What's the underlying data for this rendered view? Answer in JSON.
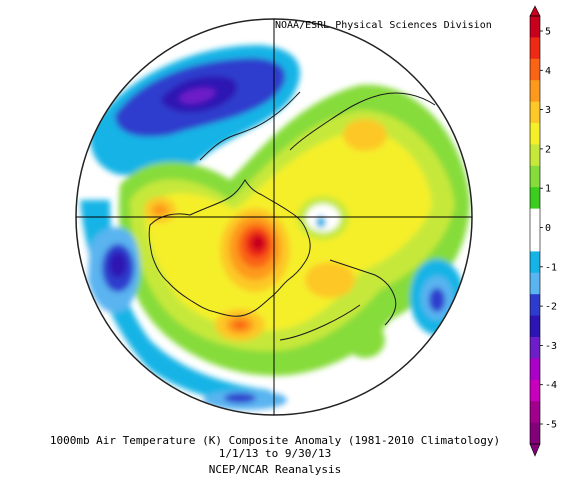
{
  "credit": "NOAA/ESRL Physical Sciences Division",
  "caption": {
    "line1": "1000mb Air Temperature (K) Composite Anomaly (1981-2010 Climatology)",
    "line2": "1/1/13  to 9/30/13",
    "line3": "NCEP/NCAR Reanalysis"
  },
  "colorbar": {
    "labels": [
      "5",
      "4",
      "3",
      "2",
      "1",
      "0",
      "-1",
      "-2",
      "-3",
      "-4",
      "-5"
    ],
    "colors": [
      "#c8001e",
      "#ee2a14",
      "#fa6414",
      "#fd9a1e",
      "#fdc828",
      "#f5ef2a",
      "#c6e83a",
      "#86dc3a",
      "#3ccd1e",
      "#ffffff",
      "#ffffff",
      "#16b4e6",
      "#5ab4f0",
      "#2d3ccd",
      "#2d14b4",
      "#6e1ec8",
      "#aa00c8",
      "#c800be",
      "#a0008c",
      "#820078"
    ]
  }
}
